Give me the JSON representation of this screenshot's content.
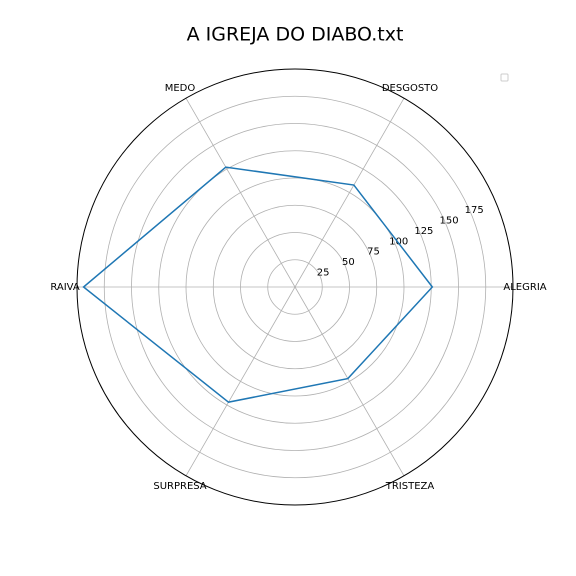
{
  "chart_data": {
    "type": "radar",
    "title": "A IGREJA DO DIABO.txt",
    "categories": [
      "ALEGRIA",
      "DESGOSTO",
      "MEDO",
      "RAIVA",
      "SURPRESA",
      "TRISTEZA"
    ],
    "series": [
      {
        "color": "#1f77b4",
        "values": [
          126,
          108,
          127,
          194,
          122,
          97
        ]
      }
    ],
    "ylim": [
      0,
      200
    ],
    "yticks": [
      25,
      50,
      75,
      100,
      125,
      150,
      175
    ],
    "grid": true
  }
}
